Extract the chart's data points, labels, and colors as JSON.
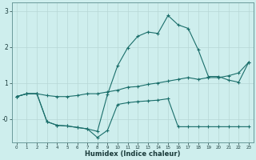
{
  "background_color": "#ceeeed",
  "grid_color": "#b8d8d5",
  "line_color": "#1a6e6a",
  "xlabel": "Humidex (Indice chaleur)",
  "xlim_min": -0.5,
  "xlim_max": 23.5,
  "ylim_min": -0.65,
  "ylim_max": 3.25,
  "line1_x": [
    0,
    1,
    2,
    3,
    4,
    5,
    6,
    7,
    8,
    9,
    10,
    11,
    12,
    13,
    14,
    15,
    16,
    17,
    18,
    19,
    20,
    21,
    22,
    23
  ],
  "line1_y": [
    0.62,
    0.7,
    0.7,
    -0.08,
    -0.18,
    -0.2,
    -0.24,
    -0.28,
    -0.52,
    -0.32,
    0.4,
    0.45,
    0.48,
    0.5,
    0.52,
    0.56,
    -0.22,
    -0.22,
    -0.22,
    -0.22,
    -0.22,
    -0.22,
    -0.22,
    -0.22
  ],
  "line2_x": [
    0,
    1,
    2,
    3,
    4,
    5,
    6,
    7,
    8,
    9,
    10,
    11,
    12,
    13,
    14,
    15,
    16,
    17,
    18,
    19,
    20,
    21,
    22,
    23
  ],
  "line2_y": [
    0.62,
    0.7,
    0.7,
    -0.08,
    -0.18,
    -0.2,
    -0.24,
    -0.28,
    -0.35,
    0.68,
    1.48,
    1.98,
    2.3,
    2.42,
    2.38,
    2.88,
    2.62,
    2.52,
    1.92,
    1.18,
    1.18,
    1.08,
    1.02,
    1.58
  ],
  "line3_x": [
    0,
    1,
    2,
    3,
    4,
    5,
    6,
    7,
    8,
    9,
    10,
    11,
    12,
    13,
    14,
    15,
    16,
    17,
    18,
    19,
    20,
    21,
    22,
    23
  ],
  "line3_y": [
    0.62,
    0.7,
    0.7,
    0.65,
    0.62,
    0.62,
    0.65,
    0.7,
    0.7,
    0.75,
    0.8,
    0.88,
    0.9,
    0.96,
    1.0,
    1.05,
    1.1,
    1.15,
    1.1,
    1.15,
    1.15,
    1.2,
    1.28,
    1.58
  ]
}
